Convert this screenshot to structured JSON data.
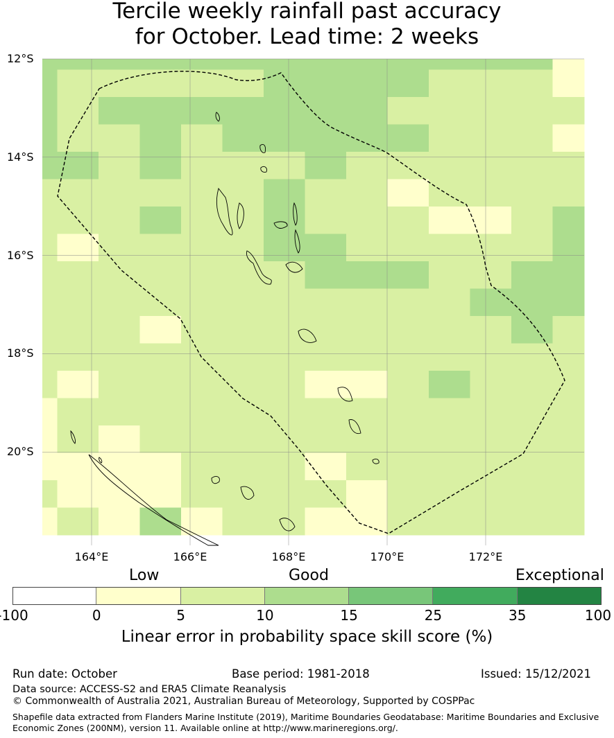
{
  "title_line1": "Tercile weekly rainfall past accuracy",
  "title_line2": "for October. Lead time: 2 weeks",
  "map": {
    "lon_range": [
      163.0,
      174.0
    ],
    "lat_range": [
      -21.9,
      -12.0
    ],
    "lat_ticks": [
      {
        "value": -12,
        "label": "12°S"
      },
      {
        "value": -14,
        "label": "14°S"
      },
      {
        "value": -16,
        "label": "16°S"
      },
      {
        "value": -18,
        "label": "18°S"
      },
      {
        "value": -20,
        "label": "20°S"
      }
    ],
    "lon_ticks": [
      {
        "value": 164,
        "label": "164°E"
      },
      {
        "value": 166,
        "label": "166°E"
      },
      {
        "value": 168,
        "label": "168°E"
      },
      {
        "value": 170,
        "label": "170°E"
      },
      {
        "value": 172,
        "label": "172°E"
      }
    ],
    "grid": true
  },
  "colorbar": {
    "category_labels": [
      "Low",
      "Good",
      "Exceptional"
    ],
    "ticks": [
      "-100",
      "0",
      "5",
      "10",
      "15",
      "25",
      "35",
      "100"
    ],
    "colors": [
      "#ffffff",
      "#ffffcc",
      "#d9f0a3",
      "#addd8e",
      "#78c679",
      "#41ab5d",
      "#238443"
    ],
    "title": "Linear error in probability space skill score (%)"
  },
  "footer": {
    "run_date": "Run date: October",
    "base_period": "Base period: 1981-2018",
    "issued": "Issued: 15/12/2021",
    "data_source": "Data source: ACCESS-S2 and ERA5 Climate Reanalysis",
    "copyright": "© Commonwealth of Australia 2021, Australian Bureau of Meteorology, Supported by COSPPac",
    "shapefile_line1": "Shapefile data extracted from Flanders Marine Institute (2019), Maritime Boundaries Geodatabase: Maritime Boundaries and Exclusive",
    "shapefile_line2": "Economic Zones (200NM), version 11. Available online at http://www.marineregions.org/."
  }
}
